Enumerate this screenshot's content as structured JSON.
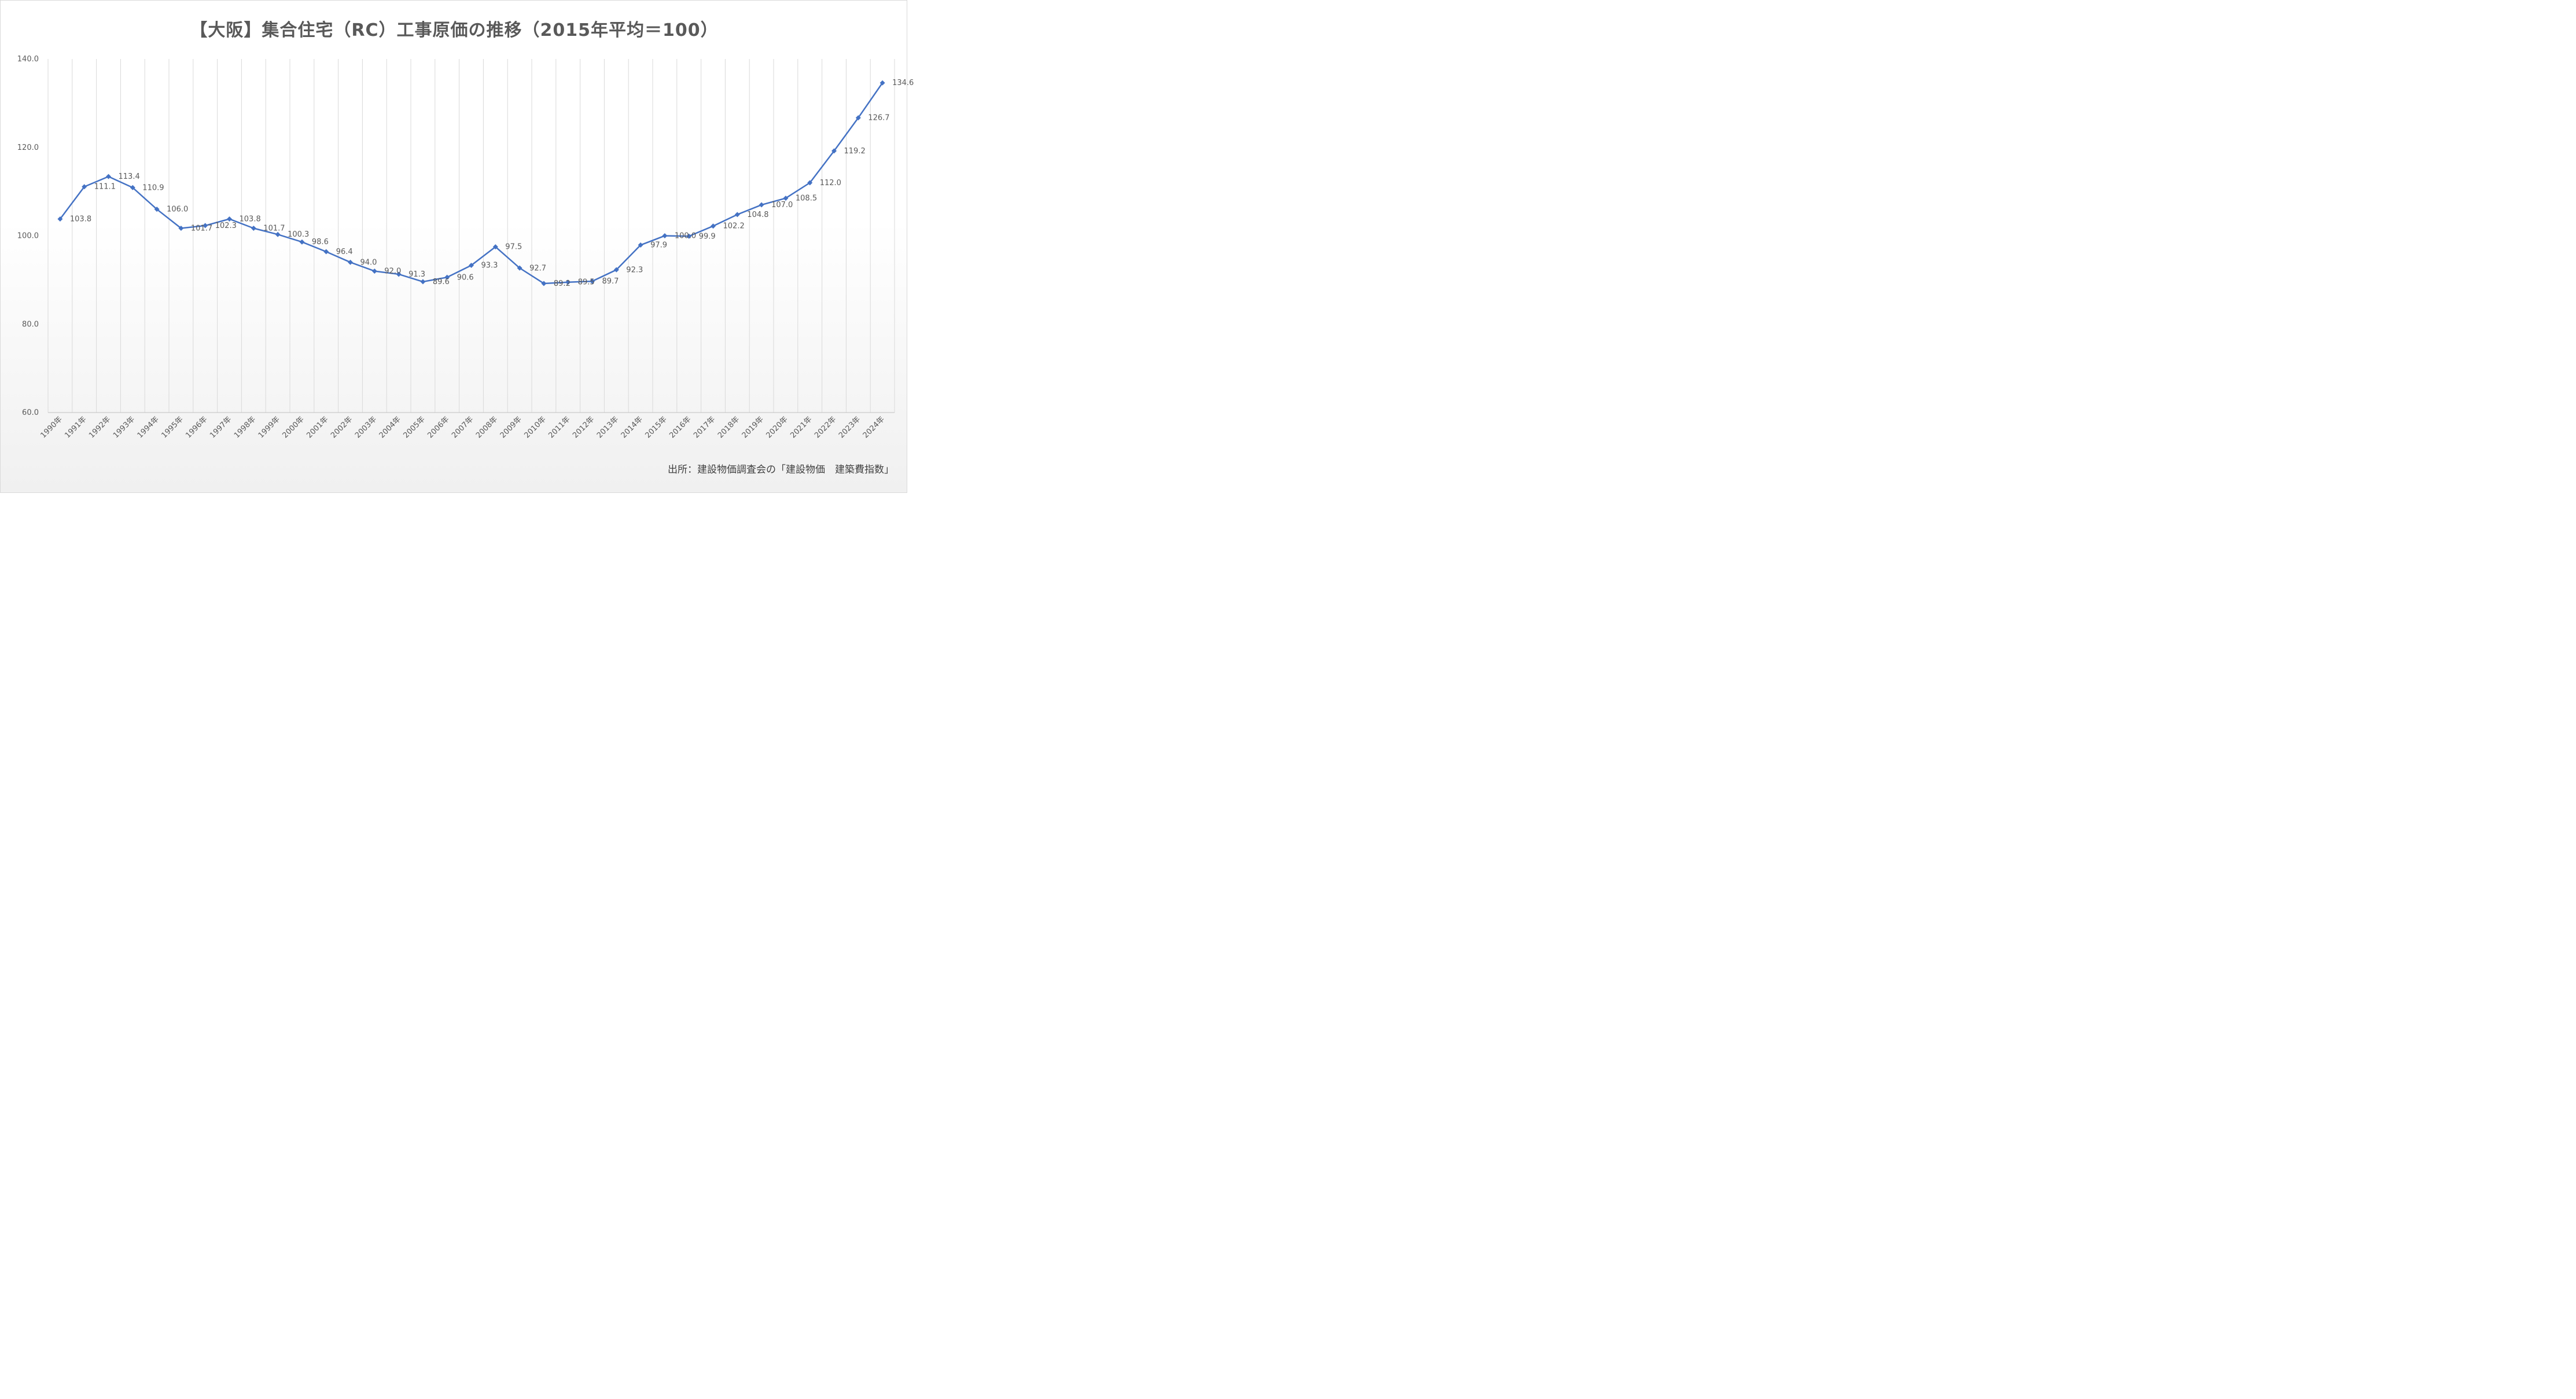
{
  "chart_data": {
    "type": "line",
    "title": "【大阪】集合住宅（RC）工事原価の推移（2015年平均＝100）",
    "source": "出所：建設物価調査会の「建設物価　建築費指数」",
    "xlabel": "",
    "ylabel": "",
    "ylim": [
      60,
      140
    ],
    "yticks": [
      "60.0",
      "80.0",
      "100.0",
      "120.0",
      "140.0"
    ],
    "grid": "vertical",
    "legend": "none",
    "line_color": "#4472c4",
    "categories": [
      "1990年",
      "1991年",
      "1992年",
      "1993年",
      "1994年",
      "1995年",
      "1996年",
      "1997年",
      "1998年",
      "1999年",
      "2000年",
      "2001年",
      "2002年",
      "2003年",
      "2004年",
      "2005年",
      "2006年",
      "2007年",
      "2008年",
      "2009年",
      "2010年",
      "2011年",
      "2012年",
      "2013年",
      "2014年",
      "2015年",
      "2016年",
      "2017年",
      "2018年",
      "2019年",
      "2020年",
      "2021年",
      "2022年",
      "2023年",
      "2024年"
    ],
    "series": [
      {
        "values": [
          103.8,
          111.1,
          113.4,
          110.9,
          106.0,
          101.7,
          102.3,
          103.8,
          101.7,
          100.3,
          98.6,
          96.4,
          94.0,
          92.0,
          91.3,
          89.6,
          90.6,
          93.3,
          97.5,
          92.7,
          89.2,
          89.5,
          89.7,
          92.3,
          97.9,
          100.0,
          99.9,
          102.2,
          104.8,
          107.0,
          108.5,
          112.0,
          119.2,
          126.7,
          134.6
        ],
        "labels": [
          "103.8",
          "111.1",
          "113.4",
          "110.9",
          "106.0",
          "101.7",
          "102.3",
          "103.8",
          "101.7",
          "100.3",
          "98.6",
          "96.4",
          "94.0",
          "92.0",
          "91.3",
          "89.6",
          "90.6",
          "93.3",
          "97.5",
          "92.7",
          "89.2",
          "89.5",
          "89.7",
          "92.3",
          "97.9",
          "100.0",
          "99.9",
          "102.2",
          "104.8",
          "107.0",
          "108.5",
          "112.0",
          "119.2",
          "126.7",
          "134.6"
        ]
      }
    ]
  }
}
